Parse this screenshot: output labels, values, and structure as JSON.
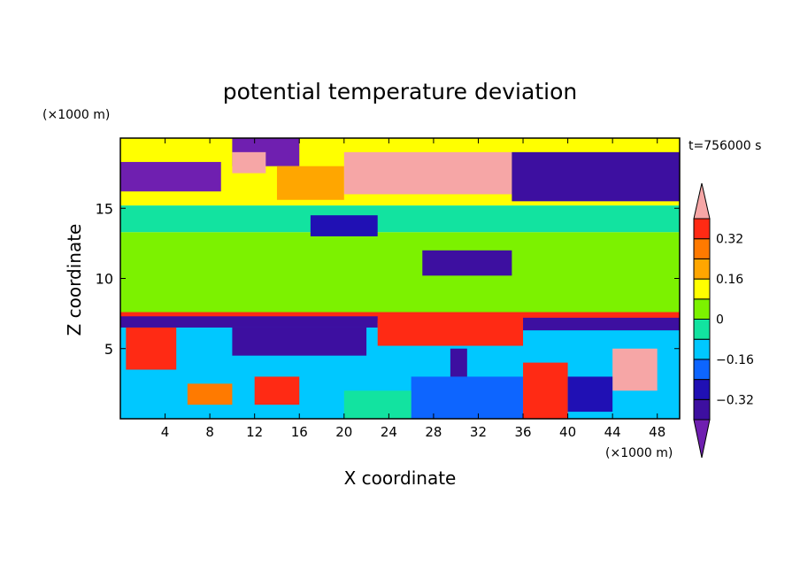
{
  "chart_data": {
    "type": "heatmap",
    "title": "potential temperature deviation",
    "xlabel": "X coordinate",
    "ylabel": "Z coordinate",
    "x_unit": "(×1000 m)",
    "y_unit": "(×1000 m)",
    "time_label": "t=756000 s",
    "xlim": [
      0,
      50
    ],
    "ylim": [
      0,
      20
    ],
    "x_ticks": [
      4,
      8,
      12,
      16,
      20,
      24,
      28,
      32,
      36,
      40,
      44,
      48
    ],
    "y_ticks": [
      5,
      10,
      15
    ],
    "colorbar": {
      "levels": [
        -0.4,
        -0.32,
        -0.24,
        -0.16,
        -0.08,
        0,
        0.08,
        0.16,
        0.24,
        0.32,
        0.4
      ],
      "tick_labels": [
        "−0.32",
        "−0.16",
        "0",
        "0.16",
        "0.32"
      ],
      "tick_values": [
        -0.32,
        -0.16,
        0,
        0.16,
        0.32
      ],
      "colors": [
        "#6f1fb0",
        "#3d0fa0",
        "#2010b4",
        "#0d65ff",
        "#00c8ff",
        "#12e3a0",
        "#7cf200",
        "#ffff00",
        "#ffa600",
        "#ff7a00",
        "#ff2a14",
        "#f6a6a6"
      ]
    },
    "regions": [
      {
        "x": [
          0,
          50
        ],
        "z": [
          7.5,
          13.3
        ],
        "theta": 0.03
      },
      {
        "x": [
          0,
          50
        ],
        "z": [
          13.3,
          15.2
        ],
        "theta": -0.05
      },
      {
        "x": [
          0,
          50
        ],
        "z": [
          6.8,
          7.6
        ],
        "theta": 0.36
      },
      {
        "x": [
          0,
          50
        ],
        "z": [
          15.2,
          20
        ],
        "theta": 0.1
      },
      {
        "x": [
          0,
          50
        ],
        "z": [
          0,
          6.8
        ],
        "theta": -0.1
      },
      {
        "x": [
          0,
          9
        ],
        "z": [
          16.2,
          18.3
        ],
        "theta": -0.42
      },
      {
        "x": [
          10,
          16
        ],
        "z": [
          18,
          20
        ],
        "theta": -0.42
      },
      {
        "x": [
          14,
          20
        ],
        "z": [
          15.6,
          18
        ],
        "theta": 0.2
      },
      {
        "x": [
          20,
          35
        ],
        "z": [
          16,
          19
        ],
        "theta": 0.4
      },
      {
        "x": [
          10,
          13
        ],
        "z": [
          17.5,
          19
        ],
        "theta": 0.42
      },
      {
        "x": [
          35,
          50
        ],
        "z": [
          15.5,
          19
        ],
        "theta": -0.35
      },
      {
        "x": [
          27,
          35
        ],
        "z": [
          10.2,
          12
        ],
        "theta": -0.35
      },
      {
        "x": [
          17,
          23
        ],
        "z": [
          13,
          14.5
        ],
        "theta": -0.3
      },
      {
        "x": [
          0,
          23
        ],
        "z": [
          6.5,
          7.3
        ],
        "theta": -0.38
      },
      {
        "x": [
          23,
          36
        ],
        "z": [
          5.2,
          7
        ],
        "theta": 0.38
      },
      {
        "x": [
          36,
          50
        ],
        "z": [
          6.3,
          7.2
        ],
        "theta": -0.4
      },
      {
        "x": [
          10,
          22
        ],
        "z": [
          4.5,
          6.5
        ],
        "theta": -0.4
      },
      {
        "x": [
          0.5,
          5
        ],
        "z": [
          3.5,
          6.5
        ],
        "theta": 0.38
      },
      {
        "x": [
          12,
          16
        ],
        "z": [
          1,
          3
        ],
        "theta": 0.34
      },
      {
        "x": [
          6,
          10
        ],
        "z": [
          1,
          2.5
        ],
        "theta": 0.3
      },
      {
        "x": [
          26,
          36
        ],
        "z": [
          0,
          3
        ],
        "theta": -0.2
      },
      {
        "x": [
          36,
          40
        ],
        "z": [
          0,
          4
        ],
        "theta": 0.36
      },
      {
        "x": [
          44,
          48
        ],
        "z": [
          2,
          5
        ],
        "theta": 0.4
      },
      {
        "x": [
          20,
          26
        ],
        "z": [
          0,
          2
        ],
        "theta": -0.08
      },
      {
        "x": [
          40,
          44
        ],
        "z": [
          0.5,
          3
        ],
        "theta": -0.3
      },
      {
        "x": [
          29.5,
          31
        ],
        "z": [
          3,
          5
        ],
        "theta": -0.4
      }
    ]
  }
}
